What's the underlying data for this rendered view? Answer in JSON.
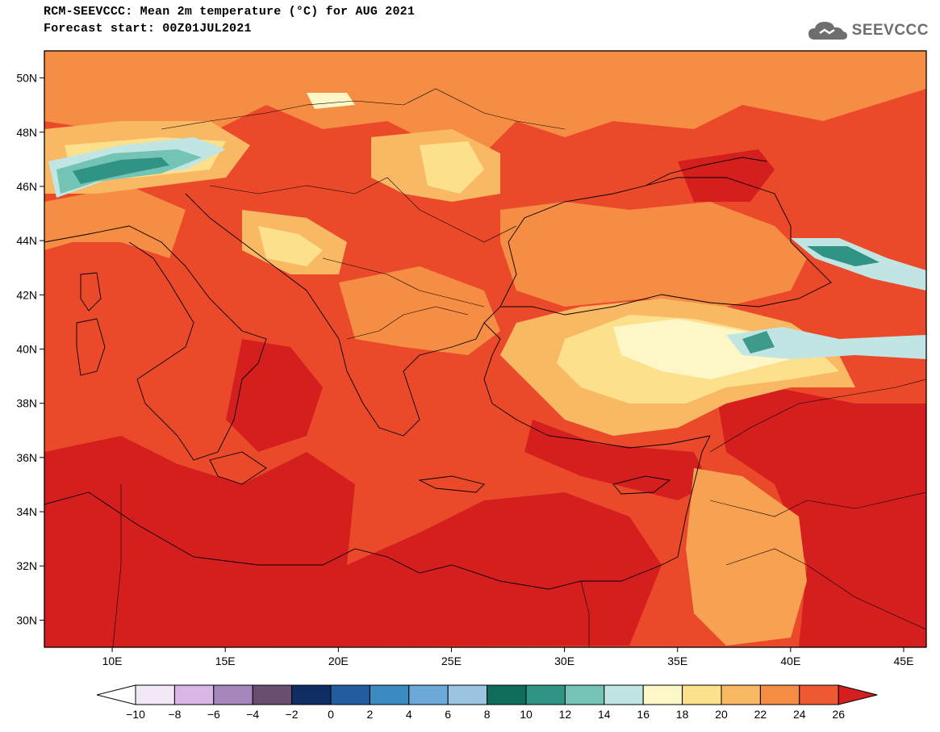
{
  "header": {
    "title_line1": "RCM-SEEVCCC: Mean 2m temperature (°C) for AUG 2021",
    "title_line2": "Forecast start: 00Z01JUL2021",
    "logo_text": "SEEVCCC"
  },
  "map": {
    "lat_labels": [
      "50N",
      "48N",
      "46N",
      "44N",
      "42N",
      "40N",
      "38N",
      "36N",
      "34N",
      "32N",
      "30N"
    ],
    "lat_values": [
      50,
      48,
      46,
      44,
      42,
      40,
      38,
      36,
      34,
      32,
      30
    ],
    "lon_labels": [
      "10E",
      "15E",
      "20E",
      "25E",
      "30E",
      "35E",
      "40E",
      "45E"
    ],
    "lon_values": [
      10,
      15,
      20,
      25,
      30,
      35,
      40,
      45
    ],
    "lon_range": [
      7,
      46
    ],
    "lat_range": [
      29,
      51
    ],
    "background_color": "#ea4a2a",
    "regions": [
      {
        "name": "alps-cold-band",
        "value": "12",
        "color": "#3e9b8c"
      },
      {
        "name": "anatolia-plateau",
        "value": "18",
        "color": "#fcefb0"
      },
      {
        "name": "caucasus",
        "value": "12",
        "color": "#3e9b8c"
      },
      {
        "name": "levant-east",
        "value": "22",
        "color": "#f7a152"
      },
      {
        "name": "sea-south",
        "value": "26",
        "color": "#d92424"
      }
    ]
  },
  "colorbar": {
    "tick_labels": [
      "−10",
      "−8",
      "−6",
      "−4",
      "−2",
      "0",
      "2",
      "4",
      "6",
      "8",
      "10",
      "12",
      "14",
      "16",
      "18",
      "20",
      "22",
      "24",
      "26"
    ],
    "colors": [
      "#f3e8f6",
      "#d9b6e6",
      "#a686bd",
      "#6a4e72",
      "#0f2d63",
      "#245d9f",
      "#3c8ac2",
      "#6aa9d8",
      "#9ac4e1",
      "#0d6d5a",
      "#2f9484",
      "#74c4b6",
      "#c1e5e3",
      "#fdf7c8",
      "#fde08c",
      "#f9b863",
      "#f68d45",
      "#f05a33"
    ],
    "under_color": "#ffffff",
    "over_color": "#d51f1f"
  }
}
